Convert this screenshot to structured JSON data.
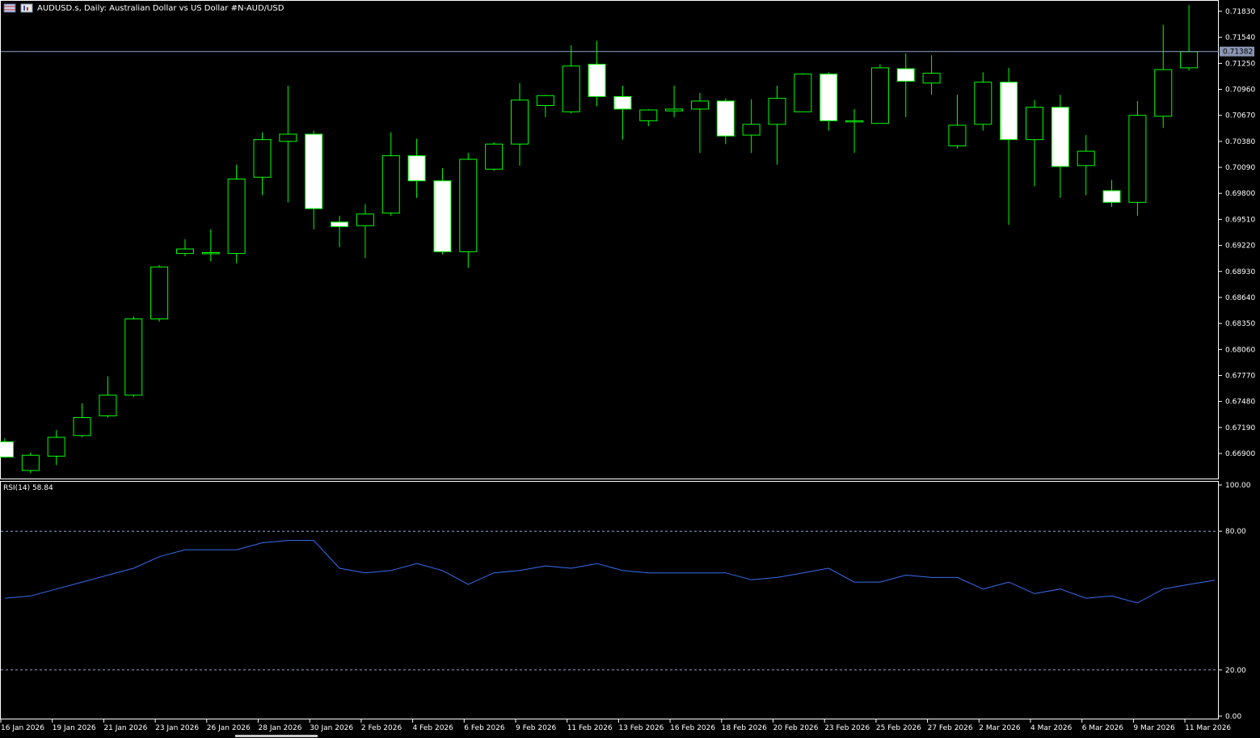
{
  "header": {
    "title": "AUDUSD.s, Daily:  Australian Dollar vs US Dollar #N-AUD/USD"
  },
  "icons": [
    "flag-icon",
    "chart-icon"
  ],
  "colors": {
    "background": "#000000",
    "bull_outline": "#00ff00",
    "bear_body": "#ffffff",
    "rsi_line": "#3a6cf0",
    "level_line": "#8fa4c7"
  },
  "price_axis": {
    "ticks": [
      "0.71830",
      "0.71540",
      "0.71250",
      "0.70960",
      "0.70670",
      "0.70380",
      "0.70090",
      "0.69800",
      "0.69510",
      "0.69220",
      "0.68930",
      "0.68640",
      "0.68350",
      "0.68060",
      "0.67770",
      "0.67480",
      "0.67190",
      "0.66900"
    ],
    "current_price": "0.71382"
  },
  "rsi": {
    "label": "RSI(14) 58.84",
    "ticks": [
      "100.00",
      "80.00",
      "20.00",
      "0.00"
    ],
    "levels": [
      80,
      20
    ]
  },
  "time_axis": {
    "labels": [
      "16 Jan 2026",
      "19 Jan 2026",
      "21 Jan 2026",
      "23 Jan 2026",
      "26 Jan 2026",
      "28 Jan 2026",
      "30 Jan 2026",
      "2 Feb 2026",
      "4 Feb 2026",
      "6 Feb 2026",
      "9 Feb 2026",
      "11 Feb 2026",
      "13 Feb 2026",
      "16 Feb 2026",
      "18 Feb 2026",
      "20 Feb 2026",
      "23 Feb 2026",
      "25 Feb 2026",
      "27 Feb 2026",
      "2 Mar 2026",
      "4 Mar 2026",
      "6 Mar 2026",
      "9 Mar 2026",
      "11 Mar 2026"
    ]
  },
  "chart_data": {
    "type": "candlestick",
    "price_range": [
      0.6665,
      0.7195
    ],
    "rsi_range": [
      0,
      100
    ],
    "candles": [
      {
        "o": 0.6703,
        "h": 0.6707,
        "l": 0.6685,
        "c": 0.6686
      },
      {
        "o": 0.6671,
        "h": 0.6691,
        "l": 0.6668,
        "c": 0.6688
      },
      {
        "o": 0.6687,
        "h": 0.6716,
        "l": 0.6677,
        "c": 0.6708
      },
      {
        "o": 0.671,
        "h": 0.6746,
        "l": 0.6708,
        "c": 0.673
      },
      {
        "o": 0.6732,
        "h": 0.6776,
        "l": 0.673,
        "c": 0.6755
      },
      {
        "o": 0.6755,
        "h": 0.6843,
        "l": 0.6753,
        "c": 0.684
      },
      {
        "o": 0.684,
        "h": 0.69,
        "l": 0.6837,
        "c": 0.6898
      },
      {
        "o": 0.6913,
        "h": 0.6929,
        "l": 0.691,
        "c": 0.6918
      },
      {
        "o": 0.6913,
        "h": 0.694,
        "l": 0.6904,
        "c": 0.6914
      },
      {
        "o": 0.6913,
        "h": 0.7012,
        "l": 0.6902,
        "c": 0.6996
      },
      {
        "o": 0.6998,
        "h": 0.7048,
        "l": 0.6978,
        "c": 0.704
      },
      {
        "o": 0.7038,
        "h": 0.71,
        "l": 0.697,
        "c": 0.7046
      },
      {
        "o": 0.7046,
        "h": 0.705,
        "l": 0.694,
        "c": 0.6963
      },
      {
        "o": 0.6948,
        "h": 0.6955,
        "l": 0.692,
        "c": 0.6943
      },
      {
        "o": 0.6944,
        "h": 0.6968,
        "l": 0.6908,
        "c": 0.6957
      },
      {
        "o": 0.6958,
        "h": 0.7048,
        "l": 0.6955,
        "c": 0.7022
      },
      {
        "o": 0.7022,
        "h": 0.7041,
        "l": 0.6975,
        "c": 0.6994
      },
      {
        "o": 0.6994,
        "h": 0.7008,
        "l": 0.6912,
        "c": 0.6915
      },
      {
        "o": 0.6915,
        "h": 0.7025,
        "l": 0.6897,
        "c": 0.7018
      },
      {
        "o": 0.7007,
        "h": 0.7037,
        "l": 0.7005,
        "c": 0.7035
      },
      {
        "o": 0.7035,
        "h": 0.7103,
        "l": 0.7011,
        "c": 0.7084
      },
      {
        "o": 0.7078,
        "h": 0.709,
        "l": 0.7065,
        "c": 0.7089
      },
      {
        "o": 0.7071,
        "h": 0.7145,
        "l": 0.7069,
        "c": 0.7122
      },
      {
        "o": 0.7124,
        "h": 0.715,
        "l": 0.7077,
        "c": 0.7088
      },
      {
        "o": 0.7088,
        "h": 0.71,
        "l": 0.704,
        "c": 0.7074
      },
      {
        "o": 0.7061,
        "h": 0.7074,
        "l": 0.7055,
        "c": 0.7073
      },
      {
        "o": 0.7072,
        "h": 0.71,
        "l": 0.7065,
        "c": 0.7074
      },
      {
        "o": 0.7074,
        "h": 0.7092,
        "l": 0.7025,
        "c": 0.7083
      },
      {
        "o": 0.7083,
        "h": 0.7086,
        "l": 0.7035,
        "c": 0.7044
      },
      {
        "o": 0.7045,
        "h": 0.7085,
        "l": 0.7025,
        "c": 0.7057
      },
      {
        "o": 0.7057,
        "h": 0.71,
        "l": 0.7012,
        "c": 0.7086
      },
      {
        "o": 0.7071,
        "h": 0.7114,
        "l": 0.7071,
        "c": 0.7113
      },
      {
        "o": 0.7113,
        "h": 0.7115,
        "l": 0.705,
        "c": 0.7061
      },
      {
        "o": 0.706,
        "h": 0.7074,
        "l": 0.7025,
        "c": 0.7061
      },
      {
        "o": 0.7058,
        "h": 0.7124,
        "l": 0.7058,
        "c": 0.712
      },
      {
        "o": 0.7119,
        "h": 0.7136,
        "l": 0.7065,
        "c": 0.7105
      },
      {
        "o": 0.7103,
        "h": 0.7134,
        "l": 0.709,
        "c": 0.7114
      },
      {
        "o": 0.7033,
        "h": 0.709,
        "l": 0.703,
        "c": 0.7056
      },
      {
        "o": 0.7057,
        "h": 0.7115,
        "l": 0.705,
        "c": 0.7104
      },
      {
        "o": 0.7104,
        "h": 0.712,
        "l": 0.6945,
        "c": 0.704
      },
      {
        "o": 0.704,
        "h": 0.7084,
        "l": 0.6988,
        "c": 0.7076
      },
      {
        "o": 0.7076,
        "h": 0.709,
        "l": 0.6975,
        "c": 0.701
      },
      {
        "o": 0.7011,
        "h": 0.7045,
        "l": 0.6978,
        "c": 0.7027
      },
      {
        "o": 0.6983,
        "h": 0.6995,
        "l": 0.6965,
        "c": 0.697
      },
      {
        "o": 0.697,
        "h": 0.7083,
        "l": 0.6955,
        "c": 0.7067
      },
      {
        "o": 0.7066,
        "h": 0.7168,
        "l": 0.7053,
        "c": 0.7118
      },
      {
        "o": 0.712,
        "h": 0.719,
        "l": 0.7117,
        "c": 0.7138
      }
    ],
    "rsi_values": [
      51,
      52,
      55,
      58,
      61,
      64,
      69,
      72,
      72,
      72,
      75,
      76,
      76,
      64,
      62,
      63,
      66,
      63,
      57,
      62,
      63,
      65,
      64,
      66,
      63,
      62,
      62,
      62,
      62,
      59,
      60,
      62,
      64,
      58,
      58,
      61,
      60,
      60,
      55,
      58,
      53,
      55,
      51,
      52,
      49,
      55,
      57,
      58.84
    ]
  }
}
